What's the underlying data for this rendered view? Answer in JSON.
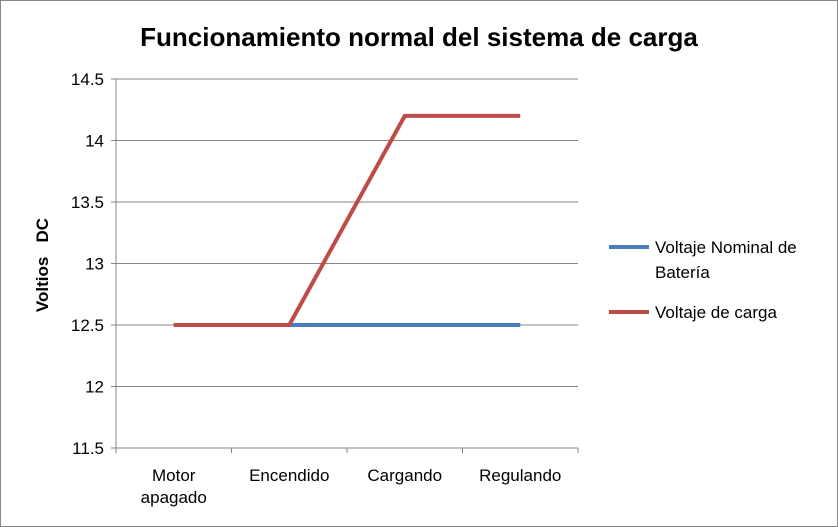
{
  "chart_data": {
    "type": "line",
    "title": "Funcionamiento normal del sistema de carga",
    "xlabel": "",
    "ylabel": "Voltios   DC",
    "categories": [
      "Motor apagado",
      "Encendido",
      "Cargando",
      "Regulando"
    ],
    "ylim": [
      11.5,
      14.5
    ],
    "yticks": [
      11.5,
      12,
      12.5,
      13,
      13.5,
      14,
      14.5
    ],
    "ytick_labels": [
      "11.5",
      "12",
      "12.5",
      "13",
      "13.5",
      "14",
      "14.5"
    ],
    "grid": true,
    "legend_position": "right",
    "series": [
      {
        "name": "Voltaje Nominal de Batería",
        "values": [
          12.5,
          12.5,
          12.5,
          12.5
        ],
        "color": "#4a7ebb"
      },
      {
        "name": "Voltaje de carga",
        "values": [
          12.5,
          12.5,
          14.2,
          14.2
        ],
        "color": "#be4b48"
      }
    ]
  }
}
